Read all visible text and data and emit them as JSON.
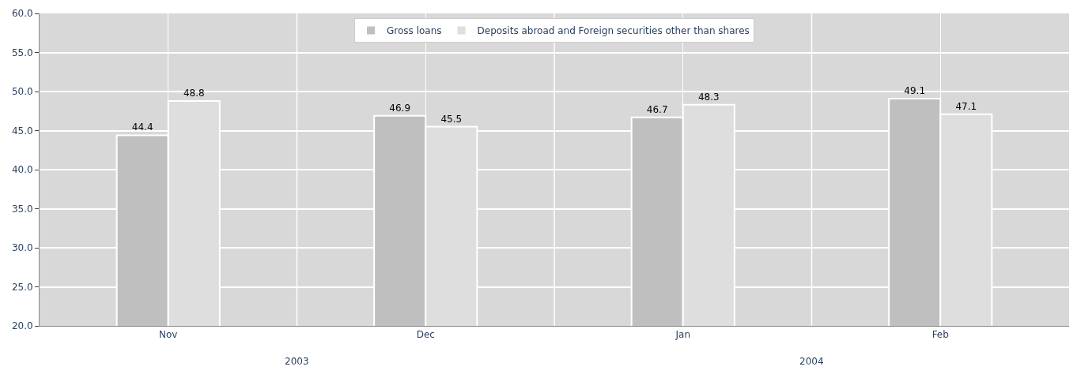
{
  "chart_data": {
    "type": "bar",
    "categories": [
      "Nov",
      "Dec",
      "Jan",
      "Feb"
    ],
    "series": [
      {
        "name": "Gross loans",
        "color": "#bfbfbf",
        "values": [
          44.4,
          46.9,
          46.7,
          49.1
        ]
      },
      {
        "name": "Deposits abroad and Foreign securities other than shares",
        "color": "#dedede",
        "values": [
          48.8,
          45.5,
          48.3,
          47.1
        ]
      }
    ],
    "ylim": [
      20,
      60
    ],
    "yticks": [
      {
        "value": 20,
        "label": "20.0"
      },
      {
        "value": 25,
        "label": "25.0"
      },
      {
        "value": 30,
        "label": "30.0"
      },
      {
        "value": 35,
        "label": "35.0"
      },
      {
        "value": 40,
        "label": "40.0"
      },
      {
        "value": 45,
        "label": "45.0"
      },
      {
        "value": 50,
        "label": "50.0"
      },
      {
        "value": 55,
        "label": "55.0"
      },
      {
        "value": 60,
        "label": "60.0"
      }
    ],
    "annotations": [
      "2003",
      "2004"
    ],
    "data_labels": true,
    "grid": true,
    "legend": "top"
  }
}
